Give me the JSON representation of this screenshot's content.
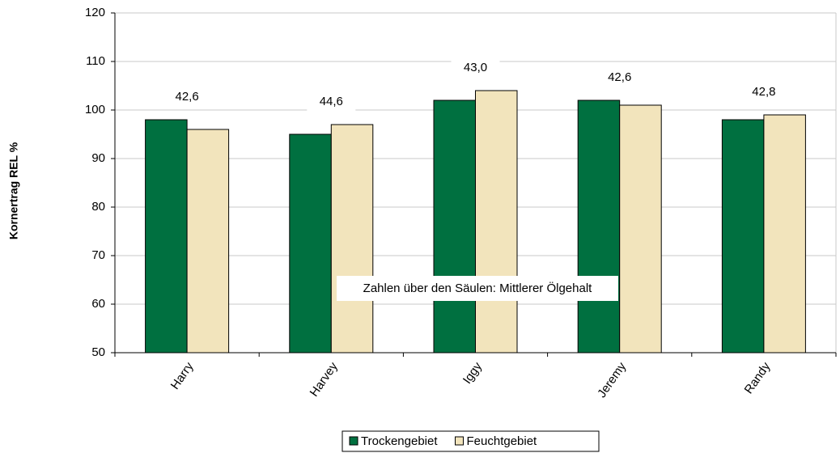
{
  "chart_data": {
    "type": "bar",
    "y_axis_label": "Kornertrag REL %",
    "categories": [
      "Harry",
      "Harvey",
      "Iggy",
      "Jeremy",
      "Randy"
    ],
    "series": [
      {
        "name": "Trockengebiet",
        "color": "#007040",
        "values": [
          98,
          95,
          102,
          102,
          98
        ]
      },
      {
        "name": "Feuchtgebiet",
        "color": "#f2e4bc",
        "values": [
          96,
          97,
          104,
          101,
          99
        ]
      }
    ],
    "group_labels": [
      "42,6",
      "44,6",
      "43,0",
      "42,6",
      "42,8"
    ],
    "annotation": "Zahlen über den Säulen: Mittlerer Ölgehalt",
    "ylim": [
      50,
      120
    ],
    "yticks": [
      50,
      60,
      70,
      80,
      90,
      100,
      110,
      120
    ],
    "grid": true
  }
}
